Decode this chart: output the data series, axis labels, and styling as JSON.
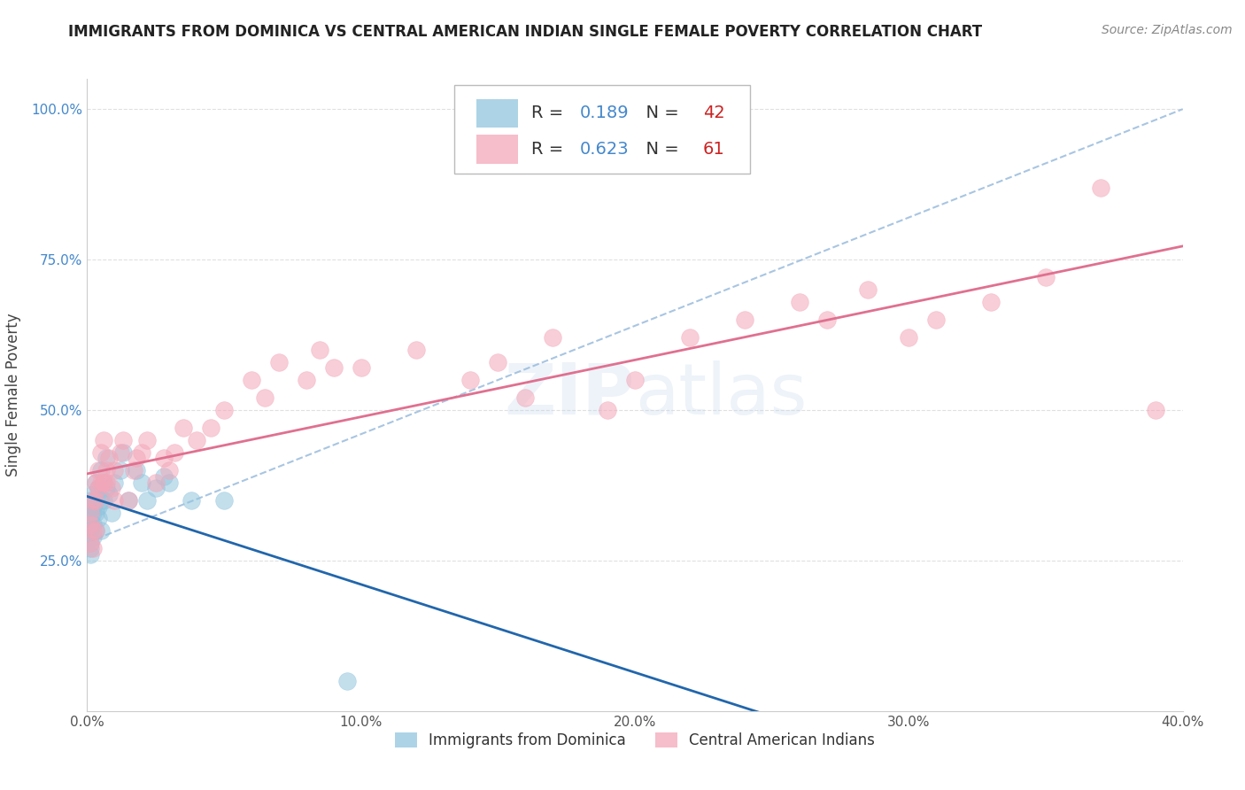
{
  "title": "IMMIGRANTS FROM DOMINICA VS CENTRAL AMERICAN INDIAN SINGLE FEMALE POVERTY CORRELATION CHART",
  "source": "Source: ZipAtlas.com",
  "ylabel": "Single Female Poverty",
  "xlim": [
    0.0,
    0.4
  ],
  "ylim": [
    0.0,
    1.05
  ],
  "xtick_labels": [
    "0.0%",
    "10.0%",
    "20.0%",
    "30.0%",
    "40.0%"
  ],
  "xtick_vals": [
    0.0,
    0.1,
    0.2,
    0.3,
    0.4
  ],
  "ytick_labels": [
    "25.0%",
    "50.0%",
    "75.0%",
    "100.0%"
  ],
  "ytick_vals": [
    0.25,
    0.5,
    0.75,
    1.0
  ],
  "blue_color": "#92c5de",
  "pink_color": "#f4a7b9",
  "blue_line_color": "#2166ac",
  "pink_line_color": "#e07090",
  "dashed_line_color": "#99bbdd",
  "R_blue": 0.189,
  "N_blue": 42,
  "R_pink": 0.623,
  "N_pink": 61,
  "legend_label_blue": "Immigrants from Dominica",
  "legend_label_pink": "Central American Indians",
  "grid_color": "#dddddd",
  "background_color": "#ffffff",
  "blue_x": [
    0.001,
    0.001,
    0.001,
    0.001,
    0.001,
    0.001,
    0.001,
    0.001,
    0.002,
    0.002,
    0.002,
    0.002,
    0.002,
    0.003,
    0.003,
    0.003,
    0.003,
    0.004,
    0.004,
    0.004,
    0.005,
    0.005,
    0.005,
    0.006,
    0.006,
    0.007,
    0.007,
    0.008,
    0.009,
    0.01,
    0.012,
    0.013,
    0.015,
    0.018,
    0.02,
    0.022,
    0.025,
    0.028,
    0.03,
    0.038,
    0.05,
    0.095
  ],
  "blue_y": [
    0.3,
    0.32,
    0.35,
    0.28,
    0.33,
    0.31,
    0.27,
    0.26,
    0.34,
    0.36,
    0.33,
    0.29,
    0.31,
    0.38,
    0.35,
    0.33,
    0.3,
    0.34,
    0.37,
    0.32,
    0.4,
    0.35,
    0.3,
    0.38,
    0.35,
    0.42,
    0.37,
    0.36,
    0.33,
    0.38,
    0.4,
    0.43,
    0.35,
    0.4,
    0.38,
    0.35,
    0.37,
    0.39,
    0.38,
    0.35,
    0.35,
    0.05
  ],
  "pink_x": [
    0.001,
    0.001,
    0.001,
    0.002,
    0.002,
    0.002,
    0.003,
    0.003,
    0.003,
    0.004,
    0.004,
    0.005,
    0.005,
    0.006,
    0.006,
    0.007,
    0.007,
    0.008,
    0.009,
    0.01,
    0.01,
    0.012,
    0.013,
    0.015,
    0.017,
    0.018,
    0.02,
    0.022,
    0.025,
    0.028,
    0.03,
    0.032,
    0.035,
    0.04,
    0.045,
    0.05,
    0.06,
    0.065,
    0.07,
    0.08,
    0.085,
    0.09,
    0.1,
    0.12,
    0.14,
    0.15,
    0.16,
    0.17,
    0.19,
    0.2,
    0.22,
    0.24,
    0.26,
    0.27,
    0.285,
    0.3,
    0.31,
    0.33,
    0.35,
    0.37,
    0.39
  ],
  "pink_y": [
    0.28,
    0.31,
    0.33,
    0.35,
    0.3,
    0.27,
    0.38,
    0.35,
    0.3,
    0.4,
    0.37,
    0.43,
    0.38,
    0.45,
    0.38,
    0.4,
    0.38,
    0.42,
    0.37,
    0.4,
    0.35,
    0.43,
    0.45,
    0.35,
    0.4,
    0.42,
    0.43,
    0.45,
    0.38,
    0.42,
    0.4,
    0.43,
    0.47,
    0.45,
    0.47,
    0.5,
    0.55,
    0.52,
    0.58,
    0.55,
    0.6,
    0.57,
    0.57,
    0.6,
    0.55,
    0.58,
    0.52,
    0.62,
    0.5,
    0.55,
    0.62,
    0.65,
    0.68,
    0.65,
    0.7,
    0.62,
    0.65,
    0.68,
    0.72,
    0.87,
    0.5
  ]
}
